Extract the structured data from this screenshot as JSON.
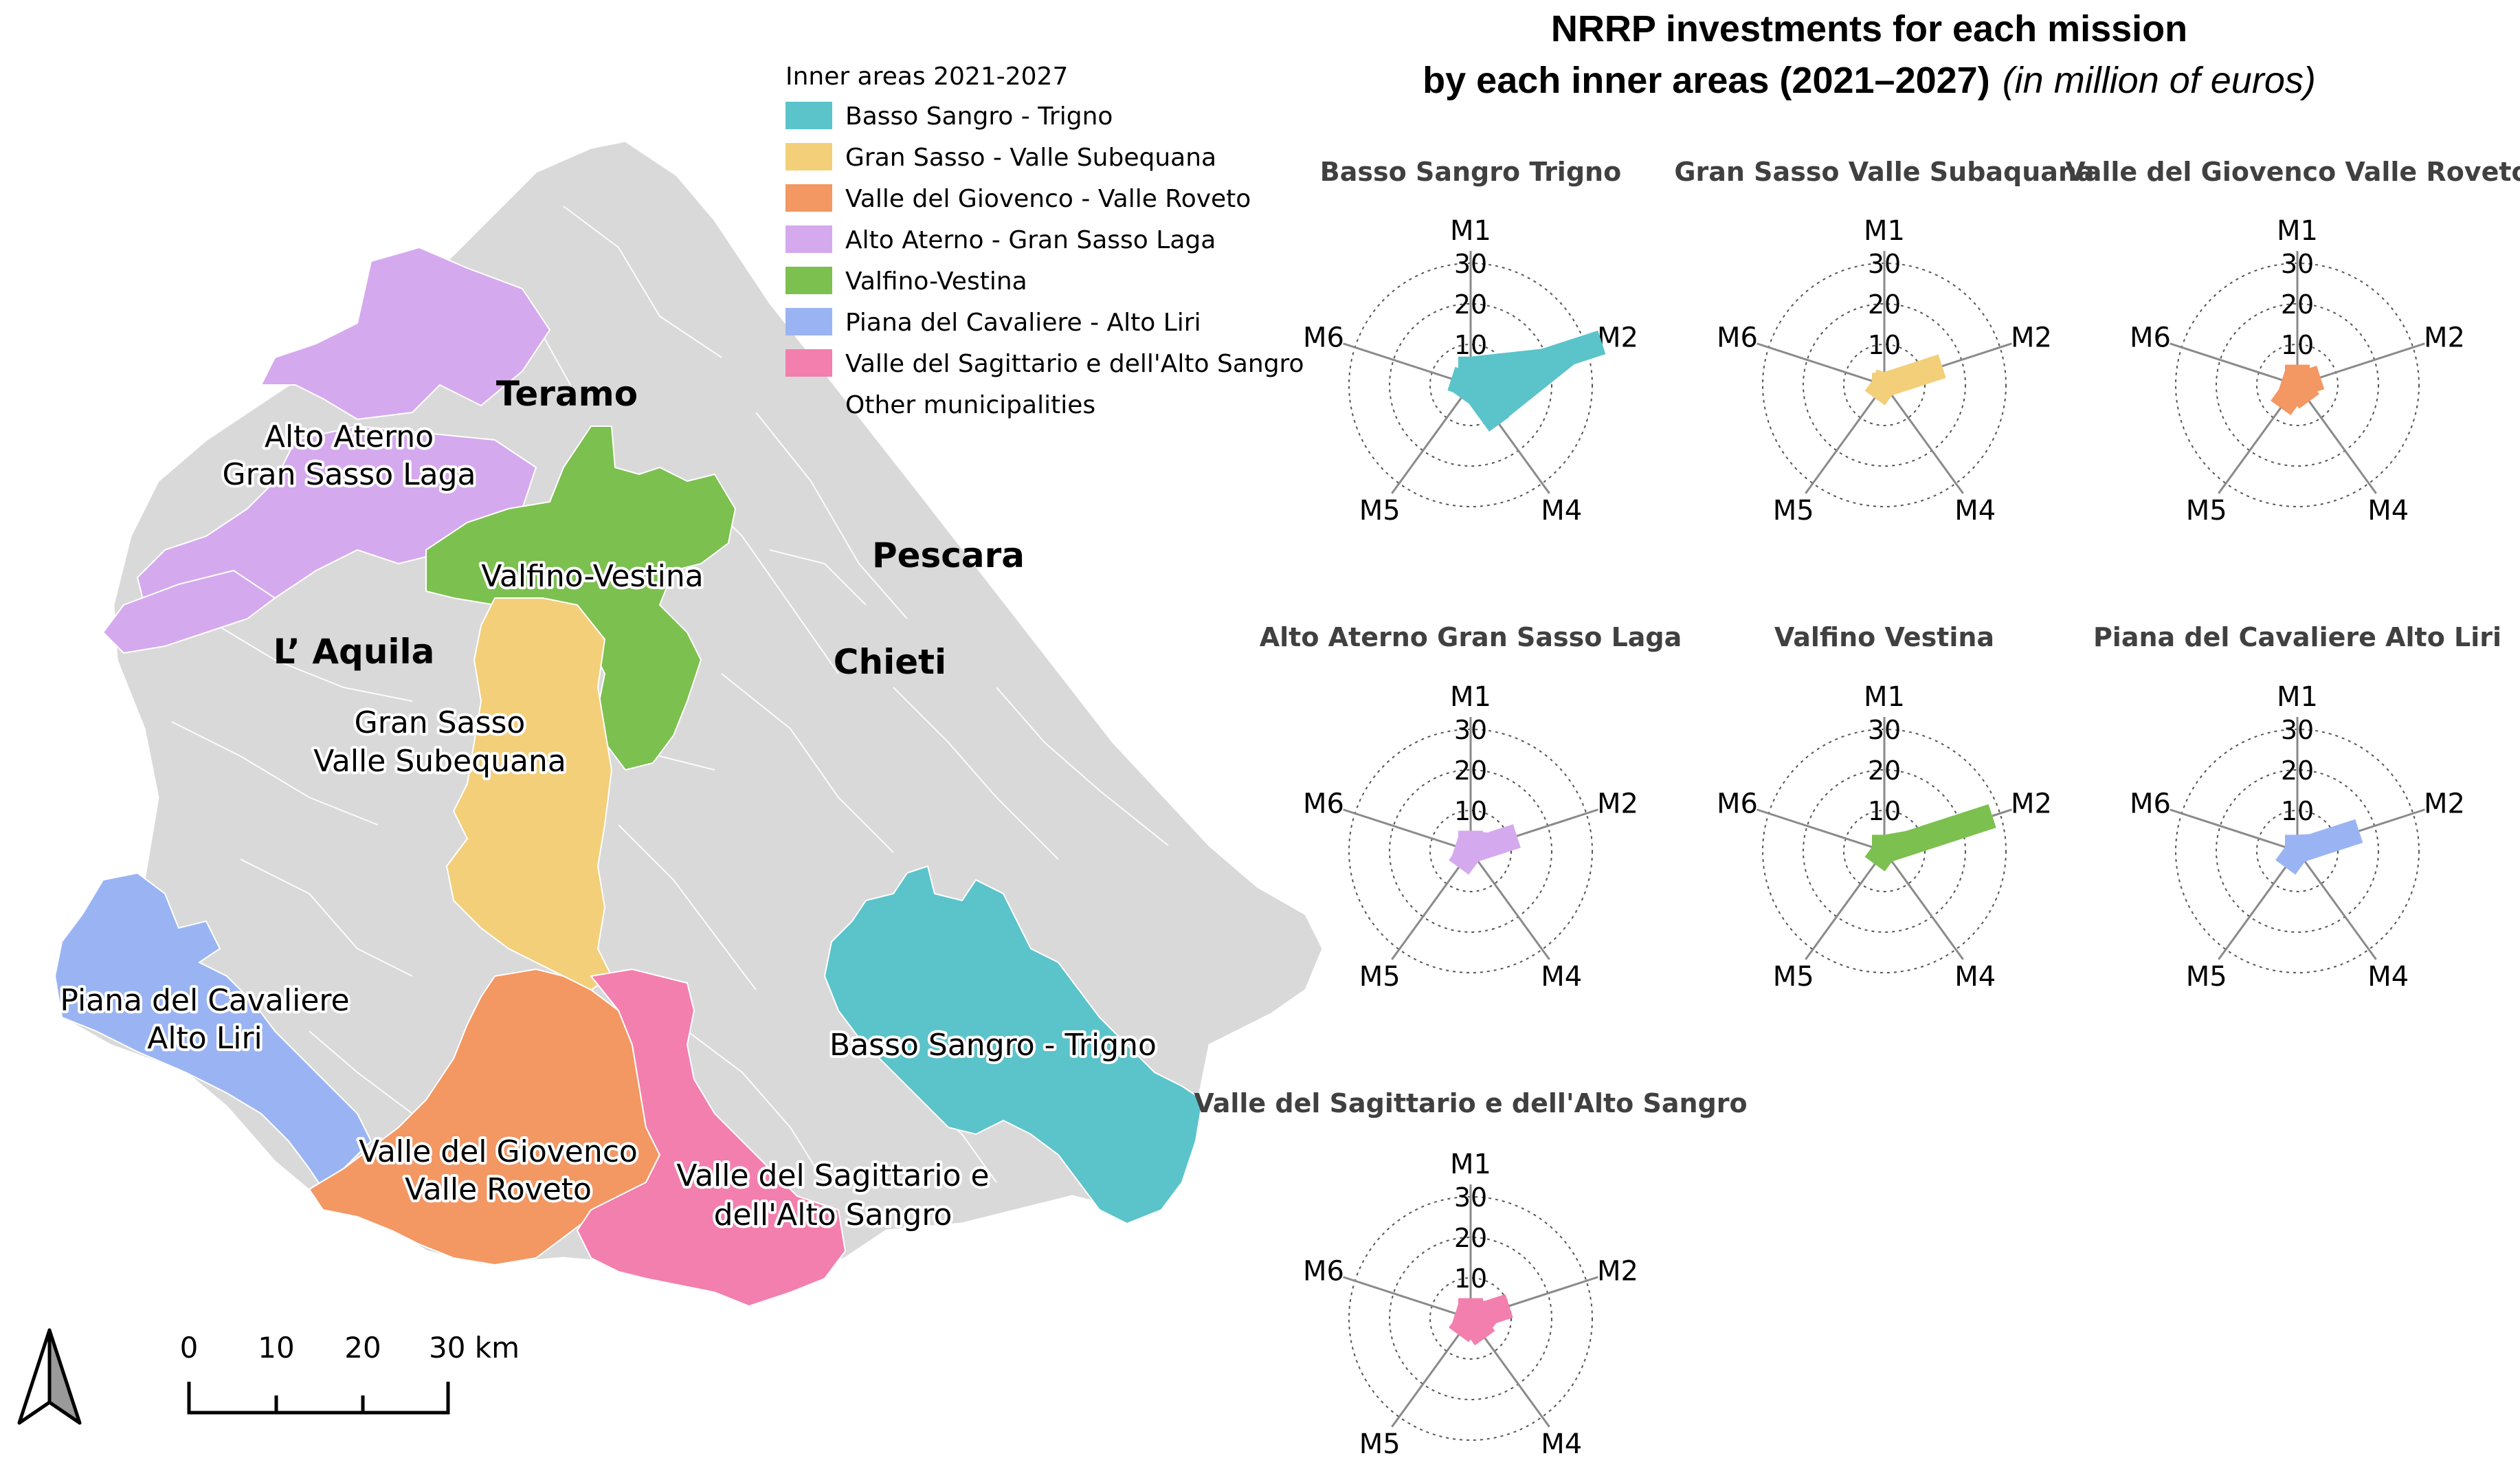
{
  "main_title": {
    "line1": "NRRP investments for each mission",
    "line2_bold": "by each inner areas (2021–2027)",
    "line2_italic": "(in million of euros)"
  },
  "legend": {
    "title": "Inner areas 2021-2027",
    "items": [
      {
        "label": "Basso Sangro - Trigno",
        "color": "#5bc3ca"
      },
      {
        "label": "Gran Sasso - Valle Subequana",
        "color": "#f3cf7a"
      },
      {
        "label": "Valle del Giovenco - Valle Roveto",
        "color": "#f39763"
      },
      {
        "label": "Alto Aterno - Gran Sasso Laga",
        "color": "#d5a9ee"
      },
      {
        "label": "Valfino-Vestina",
        "color": "#7cc04f"
      },
      {
        "label": "Piana del Cavaliere - Alto Liri",
        "color": "#9ab4f3"
      },
      {
        "label": "Valle del Sagittario e dell'Alto Sangro",
        "color": "#f37fae"
      },
      {
        "label": "Other municipalities",
        "color": "#d9d9d9"
      }
    ]
  },
  "map": {
    "provinces": [
      "Teramo",
      "Pescara",
      "L’ Aquila",
      "Chieti"
    ],
    "area_labels": {
      "alto_aterno": [
        "Alto Aterno",
        "Gran Sasso Laga"
      ],
      "valfino": [
        "Valfino-Vestina"
      ],
      "gran_sasso": [
        "Gran Sasso",
        "Valle Subequana"
      ],
      "piana": [
        "Piana del Cavaliere",
        "Alto Liri"
      ],
      "giovenco": [
        "Valle del Giovenco",
        "Valle Roveto"
      ],
      "sagittario": [
        "Valle del Sagittario e",
        "dell'Alto Sangro"
      ],
      "basso_sangro": [
        "Basso Sangro - Trigno"
      ]
    },
    "scale_bar": {
      "ticks": [
        "0",
        "10",
        "20",
        "30 km"
      ]
    },
    "north_arrow": "north-arrow-icon"
  },
  "radar": {
    "axes": [
      "M1",
      "M2",
      "M4",
      "M5",
      "M6"
    ],
    "rings": [
      "10",
      "20",
      "30"
    ],
    "max": 30,
    "charts": [
      {
        "title": "Basso Sangro Trigno",
        "color": "#5bc3ca",
        "values": [
          7,
          34,
          12,
          4,
          5
        ]
      },
      {
        "title": "Gran Sasso Valle Subaquana",
        "color": "#f3cf7a",
        "values": [
          3,
          15,
          3,
          4,
          3
        ]
      },
      {
        "title": "Valle del Giovenco Valle Roveto",
        "color": "#f39763",
        "values": [
          5,
          6,
          5,
          7,
          4
        ]
      },
      {
        "title": "Alto Aterno Gran Sasso Laga",
        "color": "#d5a9ee",
        "values": [
          5,
          12,
          3,
          5,
          4
        ]
      },
      {
        "title": "Valfino Vestina",
        "color": "#7cc04f",
        "values": [
          4,
          28,
          3,
          4,
          3
        ]
      },
      {
        "title": "Piana del Cavaliere Alto Liri",
        "color": "#9ab4f3",
        "values": [
          4,
          16,
          3,
          5,
          3
        ]
      },
      {
        "title": "Valle del Sagittario e dell'Alto Sangro",
        "color": "#f37fae",
        "values": [
          5,
          10,
          6,
          5,
          4
        ]
      }
    ]
  }
}
